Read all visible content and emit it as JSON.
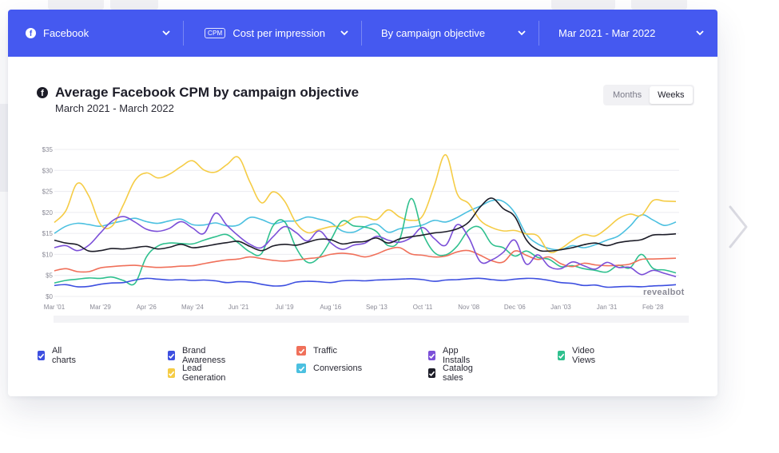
{
  "toolbar": {
    "platform": "Facebook",
    "metric_badge": "CPM",
    "metric": "Cost per impression",
    "breakdown": "By campaign objective",
    "date_range": "Mar 2021 - Mar 2022"
  },
  "header": {
    "title": "Average Facebook CPM by campaign objective",
    "subtitle": "March 2021 - March 2022"
  },
  "toggle": {
    "months": "Months",
    "weeks": "Weeks",
    "selected": "Weeks"
  },
  "watermark": "revealbot",
  "legend": {
    "all_charts": "All charts",
    "all_color": "#3d4fe0"
  },
  "chart_data": {
    "type": "line",
    "title": "Average Facebook CPM by campaign objective",
    "subtitle": "March 2021 - March 2022",
    "xlabel": "",
    "ylabel": "",
    "x_tick_labels": [
      "Mar '01",
      "Mar '29",
      "Apr '26",
      "May '24",
      "Jun '21",
      "Jul '19",
      "Aug '16",
      "Sep '13",
      "Oct '11",
      "Nov '08",
      "Dec '06",
      "Jan '03",
      "Jan '31",
      "Feb '28"
    ],
    "y_tick_labels": [
      "$0",
      "$5",
      "$10",
      "$15",
      "$20",
      "$25",
      "$30",
      "$35"
    ],
    "ylim": [
      0,
      35
    ],
    "grid": true,
    "weeks": 55,
    "series": [
      {
        "name": "Brand Awareness",
        "color": "#3d4fe0",
        "values": [
          2.6,
          2.8,
          2.3,
          2.4,
          2.9,
          3.2,
          3.3,
          3.9,
          4.3,
          4.1,
          3.9,
          4.0,
          3.8,
          3.9,
          3.7,
          3.3,
          3.5,
          3.4,
          2.9,
          2.5,
          2.6,
          3.4,
          3.6,
          3.5,
          3.3,
          3.7,
          3.8,
          3.7,
          3.9,
          4.0,
          4.1,
          4.2,
          4.0,
          3.6,
          3.9,
          4.0,
          4.2,
          4.3,
          4.0,
          3.8,
          4.1,
          4.3,
          4.2,
          3.8,
          3.3,
          3.1,
          2.6,
          2.7,
          2.2,
          2.3,
          2.4,
          2.3,
          2.5,
          2.6,
          2.8
        ]
      },
      {
        "name": "Traffic",
        "color": "#f0705a",
        "values": [
          6.1,
          6.6,
          5.9,
          5.9,
          6.8,
          7.1,
          7.3,
          7.4,
          7.1,
          6.9,
          7.0,
          7.2,
          7.3,
          7.8,
          8.3,
          8.7,
          8.9,
          9.4,
          9.0,
          8.6,
          8.4,
          8.7,
          9.0,
          9.3,
          10.0,
          10.3,
          10.0,
          9.4,
          10.1,
          11.2,
          11.6,
          10.1,
          9.8,
          9.4,
          9.6,
          10.6,
          10.9,
          9.8,
          8.5,
          8.2,
          10.8,
          9.8,
          8.8,
          9.4,
          7.8,
          7.1,
          7.9,
          7.5,
          7.3,
          7.4,
          7.7,
          8.8,
          8.9,
          9.0,
          9.1
        ]
      },
      {
        "name": "App Installs",
        "color": "#7b4fd8",
        "values": [
          11.6,
          12.1,
          10.9,
          12.2,
          15.1,
          17.9,
          19.0,
          17.7,
          16.0,
          15.5,
          16.2,
          17.8,
          16.3,
          15.0,
          19.8,
          16.9,
          14.4,
          12.4,
          11.6,
          14.2,
          16.6,
          15.2,
          13.2,
          15.6,
          12.8,
          11.2,
          12.2,
          12.7,
          14.3,
          13.4,
          12.9,
          14.0,
          16.4,
          13.8,
          12.2,
          17.1,
          14.0,
          8.3,
          8.7,
          10.5,
          13.4,
          7.7,
          9.9,
          7.1,
          6.6,
          8.2,
          7.3,
          6.5,
          8.1,
          6.9,
          6.9,
          5.2,
          6.2,
          5.5,
          4.7
        ]
      },
      {
        "name": "Video Views",
        "color": "#2fc08e",
        "values": [
          3.2,
          3.8,
          4.1,
          4.4,
          4.3,
          4.6,
          3.8,
          3.1,
          9.4,
          12.0,
          12.7,
          12.6,
          12.5,
          13.4,
          14.2,
          14.7,
          12.7,
          10.6,
          10.2,
          16.8,
          17.8,
          11.6,
          8.1,
          9.3,
          13.4,
          17.9,
          16.8,
          16.5,
          15.4,
          12.1,
          13.6,
          23.3,
          15.1,
          10.5,
          9.9,
          12.0,
          15.8,
          16.4,
          12.5,
          11.6,
          9.6,
          10.8,
          9.3,
          8.8,
          7.1,
          7.3,
          6.6,
          6.2,
          5.8,
          7.4,
          6.8,
          10.0,
          6.7,
          6.3,
          5.6
        ]
      },
      {
        "name": "Lead Generation",
        "color": "#f5cc45",
        "values": [
          17.6,
          20.4,
          26.9,
          23.9,
          17.2,
          16.7,
          21.8,
          27.6,
          29.4,
          28.2,
          29.1,
          30.9,
          32.3,
          30.1,
          29.6,
          31.4,
          33.1,
          27.2,
          22.3,
          24.9,
          22.7,
          17.5,
          15.2,
          15.9,
          16.6,
          16.9,
          18.7,
          18.9,
          18.3,
          20.6,
          18.9,
          18.1,
          19.2,
          26.3,
          33.7,
          24.4,
          22.1,
          18.1,
          16.4,
          15.6,
          15.7,
          14.9,
          14.4,
          10.6,
          11.4,
          13.3,
          14.7,
          14.4,
          16.2,
          18.5,
          19.6,
          19.3,
          22.8,
          22.7,
          22.6
        ]
      },
      {
        "name": "Conversions",
        "color": "#4bc0e0",
        "values": [
          15.0,
          16.7,
          17.4,
          17.1,
          16.7,
          17.4,
          18.0,
          18.6,
          17.8,
          17.4,
          18.0,
          18.4,
          17.1,
          17.0,
          17.5,
          16.8,
          17.0,
          18.8,
          18.3,
          17.3,
          17.9,
          18.0,
          18.9,
          18.4,
          17.6,
          15.6,
          15.3,
          16.6,
          17.2,
          15.3,
          16.1,
          16.5,
          17.0,
          18.1,
          17.7,
          18.8,
          20.3,
          21.5,
          22.8,
          22.6,
          19.9,
          14.8,
          12.5,
          11.4,
          11.1,
          12.1,
          11.6,
          12.3,
          13.4,
          14.4,
          16.7,
          19.4,
          18.2,
          16.9,
          17.7
        ]
      },
      {
        "name": "Catalog sales",
        "color": "#1d1d28",
        "values": [
          13.4,
          12.7,
          12.3,
          10.8,
          10.9,
          11.4,
          11.3,
          11.6,
          11.9,
          11.3,
          11.7,
          12.4,
          11.6,
          11.9,
          12.4,
          12.8,
          13.1,
          11.9,
          10.9,
          12.0,
          12.4,
          12.2,
          12.9,
          13.6,
          13.5,
          12.5,
          12.9,
          13.1,
          13.9,
          12.7,
          13.7,
          14.2,
          14.6,
          15.1,
          15.4,
          16.1,
          17.7,
          21.3,
          23.4,
          20.9,
          19.0,
          13.5,
          11.1,
          10.8,
          11.1,
          11.6,
          12.3,
          12.7,
          12.1,
          12.8,
          13.2,
          13.5,
          14.6,
          14.7,
          14.9
        ]
      }
    ]
  }
}
